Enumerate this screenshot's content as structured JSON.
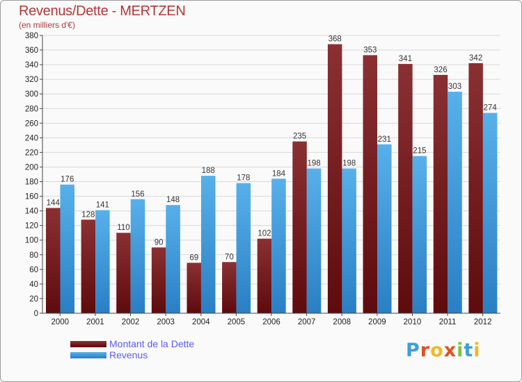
{
  "header": {
    "title": "Revenus/Dette - MERTZEN",
    "subtitle": "(en milliers d'€)"
  },
  "logo": {
    "letters": [
      "P",
      "r",
      "o",
      "x",
      "i",
      "t",
      "i"
    ],
    "colors": [
      "#3aa0d8",
      "#e0521f",
      "#f1b823",
      "#e0521f",
      "#7cc242",
      "#3aa0d8",
      "#f1b823"
    ]
  },
  "chart_data": {
    "type": "bar",
    "categories": [
      "2000",
      "2001",
      "2002",
      "2003",
      "2004",
      "2005",
      "2006",
      "2007",
      "2008",
      "2009",
      "2010",
      "2011",
      "2012"
    ],
    "series": [
      {
        "name": "Montant de la Dette",
        "color": "#7a1f22",
        "values": [
          144,
          128,
          110,
          90,
          69,
          70,
          102,
          235,
          368,
          353,
          341,
          326,
          342
        ]
      },
      {
        "name": "Revenus",
        "color": "#3d9be0",
        "values": [
          176,
          141,
          156,
          148,
          188,
          178,
          184,
          198,
          198,
          231,
          215,
          303,
          274
        ]
      }
    ],
    "ylim": [
      0,
      380
    ],
    "ytick_step": 20,
    "grid": true,
    "legend_position": "bottom-left"
  }
}
